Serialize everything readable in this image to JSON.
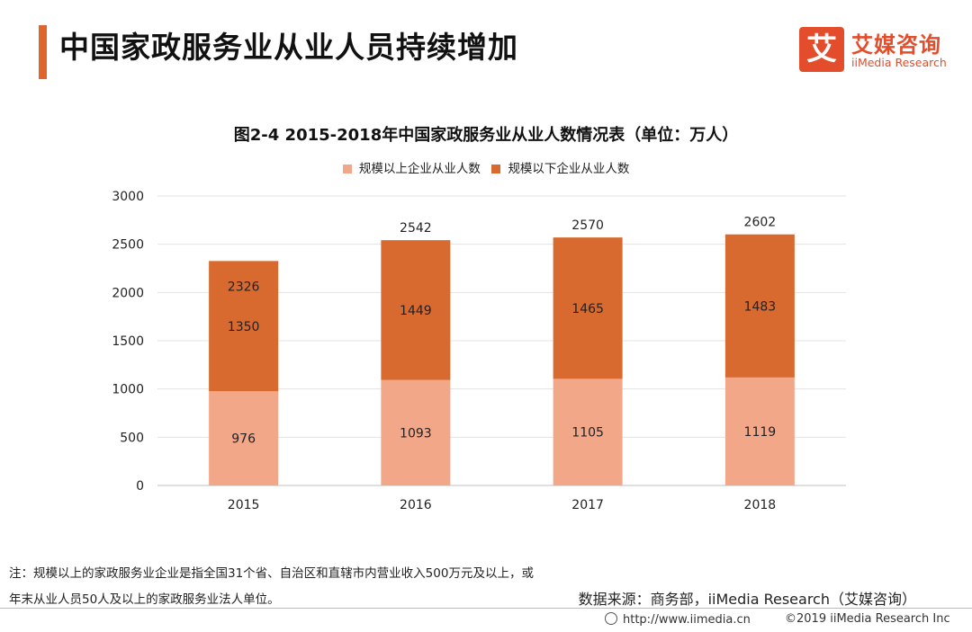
{
  "page": {
    "title": "中国家政服务业从业人员持续增加"
  },
  "logo": {
    "mark": "艾",
    "name_cn": "艾媒咨询",
    "name_en": "iiMedia Research"
  },
  "colors": {
    "accent": "#e0652c",
    "series_above": "#f2a789",
    "series_below": "#d8692f",
    "grid": "#e3e3e3",
    "axis_line": "#bfbfbf"
  },
  "chart_data": {
    "type": "bar",
    "stacked": true,
    "title": "图2-4 2015-2018年中国家政服务业从业人数情况表（单位：万人）",
    "categories": [
      "2015",
      "2016",
      "2017",
      "2018"
    ],
    "series": [
      {
        "name": "规模以上企业从业人数",
        "values": [
          976,
          1093,
          1105,
          1119
        ],
        "color": "#f2a789"
      },
      {
        "name": "规模以下企业从业人数",
        "values": [
          1350,
          1449,
          1465,
          1483
        ],
        "color": "#d8692f"
      }
    ],
    "totals": [
      2326,
      2542,
      2570,
      2602
    ],
    "ylim": [
      0,
      3000
    ],
    "yticks": [
      "0",
      "500",
      "1000",
      "1500",
      "2000",
      "2500",
      "3000"
    ],
    "grid": true,
    "legend_position": "top"
  },
  "footnote": {
    "line1": "注：规模以上的家政服务业企业是指全国31个省、自治区和直辖市内营业收入500万元及以上，或",
    "line2": "年末从业人员50人及以上的家政服务业法人单位。"
  },
  "source": "数据来源：商务部，iiMedia Research（艾媒咨询）",
  "url": "http://www.iimedia.cn",
  "copyright": "©2019  iiMedia Research  Inc"
}
